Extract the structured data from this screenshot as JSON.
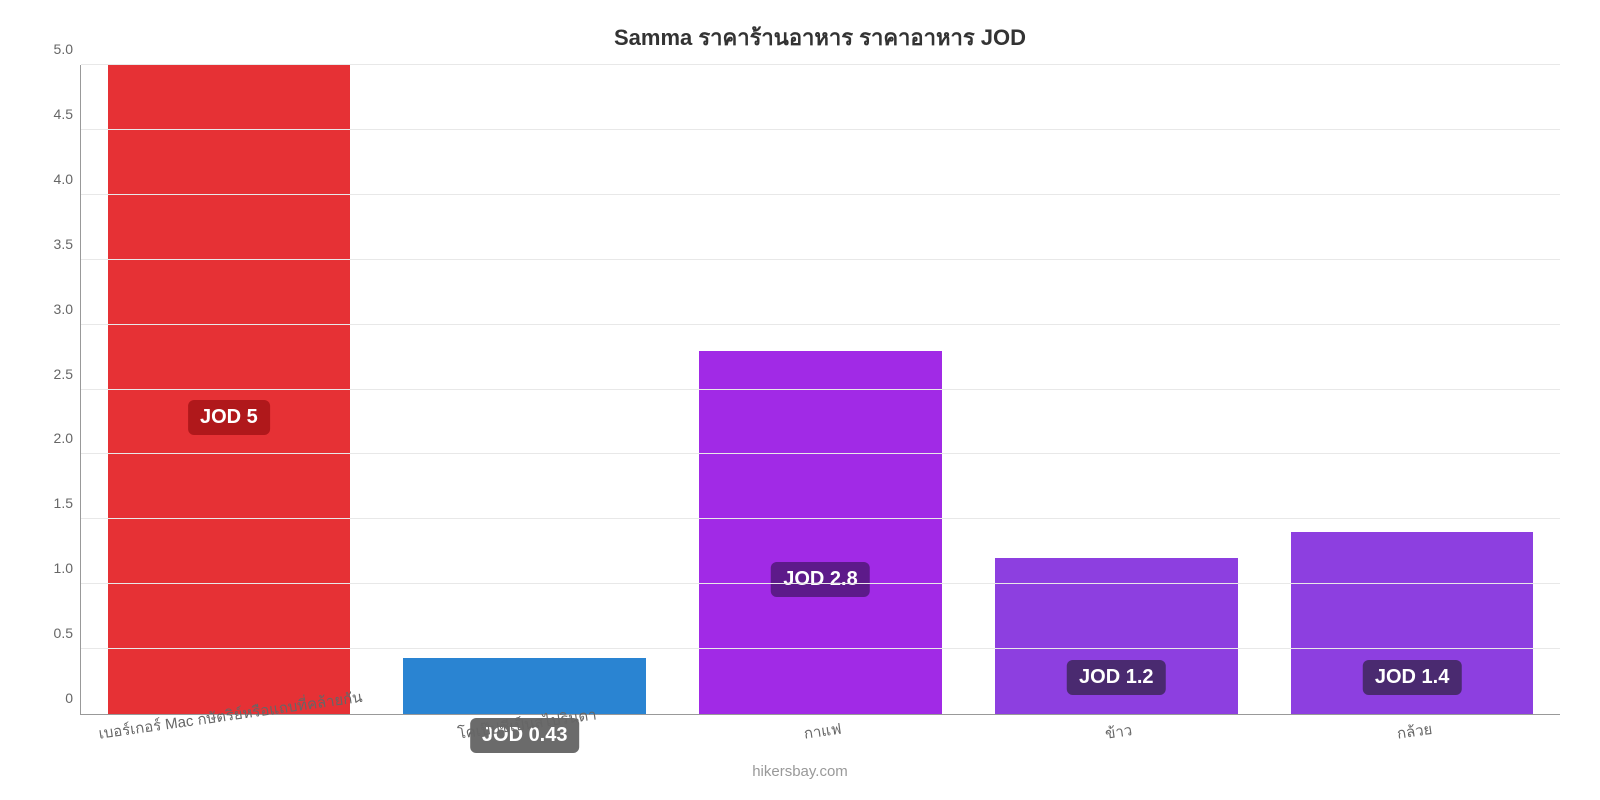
{
  "chart": {
    "type": "bar",
    "title": "Samma ราคาร้านอาหาร ราคาอาหาร JOD",
    "title_fontsize": 22,
    "title_color": "#333333",
    "background_color": "#ffffff",
    "ylim": [
      0,
      5.0
    ],
    "ytick_step": 0.5,
    "ytick_labels": [
      "0",
      "0.5",
      "1.0",
      "1.5",
      "2.0",
      "2.5",
      "3.0",
      "3.5",
      "4.0",
      "4.5",
      "5.0"
    ],
    "ytick_fontsize": 14,
    "ytick_color": "#666666",
    "grid_color": "#e8e8e8",
    "axis_color": "#999999",
    "xtick_fontsize": 15,
    "xtick_color": "#666666",
    "xtick_rotation": -8,
    "bar_width_pct": 82,
    "bars": [
      {
        "category": "เบอร์เกอร์ Mac กษัตริย์หรือแถบที่คล้ายกัน",
        "value": 5.0,
        "color": "#e63135",
        "label_text": "JOD 5",
        "label_box_bg": "#b0181b",
        "label_box_text_color": "#ffffff",
        "label_y_pct": 43
      },
      {
        "category": "โคเป๊ปซีเป็นสไปรินดา",
        "value": 0.43,
        "color": "#2a84d2",
        "label_text": "JOD 0.43",
        "label_box_bg": "#6b6b6b",
        "label_box_text_color": "#ffffff",
        "label_y_pct": -6
      },
      {
        "category": "กาแฟ",
        "value": 2.8,
        "color": "#a12ae6",
        "label_text": "JOD 2.8",
        "label_box_bg": "#5d1a8a",
        "label_box_text_color": "#ffffff",
        "label_y_pct": 18
      },
      {
        "category": "ข้าว",
        "value": 1.2,
        "color": "#8d3fe0",
        "label_text": "JOD 1.2",
        "label_box_bg": "#4a2a70",
        "label_box_text_color": "#ffffff",
        "label_y_pct": 3
      },
      {
        "category": "กล้วย",
        "value": 1.4,
        "color": "#8d3fe0",
        "label_text": "JOD 1.4",
        "label_box_bg": "#4a2a70",
        "label_box_text_color": "#ffffff",
        "label_y_pct": 3
      }
    ],
    "label_box_fontsize": 20,
    "attribution": "hikersbay.com",
    "attribution_fontsize": 15,
    "attribution_color": "#999999"
  }
}
